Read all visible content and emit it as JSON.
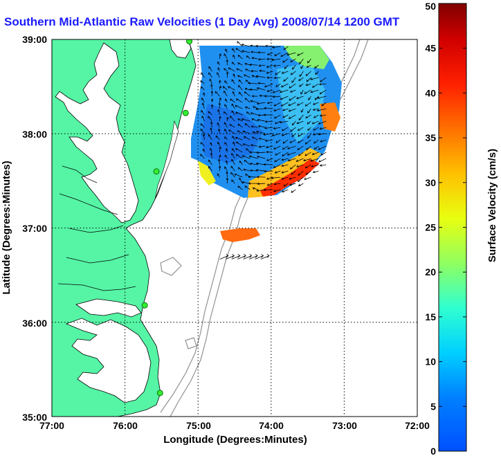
{
  "chart_data": {
    "type": "heatmap",
    "title": "Southern Mid-Atlantic Raw Velocities (1 Day Avg) 2008/07/14 1200 GMT",
    "xlabel": "Longitude (Degrees:Minutes)",
    "ylabel": "Latitude (Degrees:Minutes)",
    "x_ticks": [
      "77:00",
      "76:00",
      "75:00",
      "74:00",
      "73:00",
      "72:00"
    ],
    "y_ticks": [
      "39:00",
      "38:00",
      "37:00",
      "36:00",
      "35:00"
    ],
    "xlim": [
      -77,
      -72
    ],
    "ylim": [
      35,
      39
    ],
    "grid": "dotted",
    "colorbar": {
      "label": "Surface Velocity (cm/s)",
      "range": [
        0,
        50
      ],
      "ticks": [
        "0",
        "5",
        "10",
        "15",
        "20",
        "25",
        "30",
        "35",
        "40",
        "45",
        "50"
      ],
      "colormap": "jet"
    },
    "land_color": "#55f5a5",
    "radar_sites": [
      {
        "lon": -75.12,
        "lat": 38.98
      },
      {
        "lon": -75.17,
        "lat": 38.22
      },
      {
        "lon": -75.57,
        "lat": 37.6
      },
      {
        "lon": -75.73,
        "lat": 36.18
      },
      {
        "lon": -75.52,
        "lat": 35.25
      }
    ],
    "velocity_field": {
      "primary_region_lon": [
        -74.97,
        -73.15
      ],
      "primary_region_lat": [
        37.35,
        38.97
      ],
      "dominant_speed_cms": [
        5,
        15
      ],
      "high_speed_areas": [
        {
          "location": "southeast edge",
          "lon": [
            -74.4,
            -73.75
          ],
          "lat": [
            37.4,
            37.75
          ],
          "speed_cms": [
            35,
            45
          ]
        },
        {
          "location": "northeast edge",
          "lon": [
            -73.35,
            -73.1
          ],
          "lat": [
            38.05,
            38.35
          ],
          "speed_cms": [
            28,
            38
          ]
        },
        {
          "location": "northern rim",
          "lon": [
            -74.0,
            -73.6
          ],
          "lat": [
            38.7,
            38.95
          ],
          "speed_cms": [
            20,
            28
          ]
        }
      ],
      "secondary_patch": {
        "lon": [
          -74.75,
          -74.1
        ],
        "lat": [
          36.62,
          36.72
        ],
        "speed_cms": [
          30,
          40
        ]
      }
    }
  }
}
